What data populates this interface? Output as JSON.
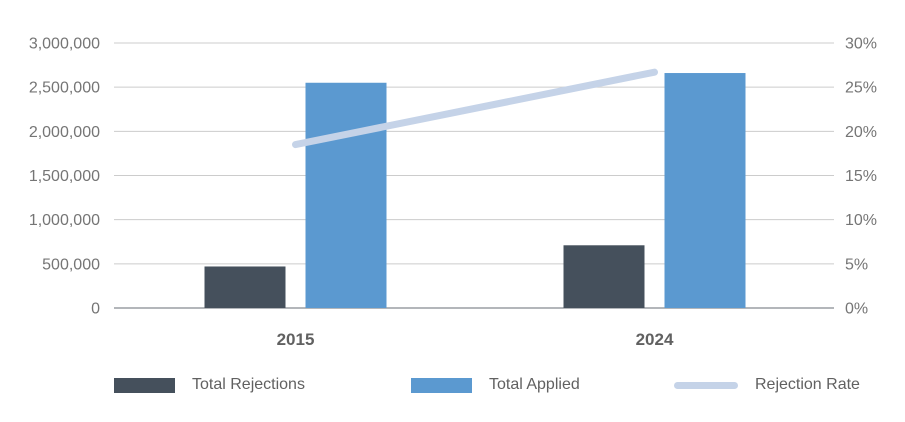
{
  "chart_data": {
    "type": "bar",
    "subtype": "combo-bar-line-dual-axis",
    "categories": [
      "2015",
      "2024"
    ],
    "series": [
      {
        "name": "Total Rejections",
        "type": "bar",
        "axis": "left",
        "color": "#45505c",
        "values": [
          470000,
          710000
        ]
      },
      {
        "name": "Total Applied",
        "type": "bar",
        "axis": "left",
        "color": "#5b99d0",
        "values": [
          2550000,
          2660000
        ]
      },
      {
        "name": "Rejection Rate",
        "type": "line",
        "axis": "right",
        "color": "#c5d3e8",
        "values": [
          18.5,
          26.7
        ]
      }
    ],
    "left_axis": {
      "min": 0,
      "max": 3000000,
      "tick_labels": [
        "3,000,000",
        "2,500,000",
        "2,000,000",
        "1,500,000",
        "1,000,000",
        "500,000",
        "0"
      ],
      "tick_values": [
        3000000,
        2500000,
        2000000,
        1500000,
        1000000,
        500000,
        0
      ]
    },
    "right_axis": {
      "min": 0,
      "max": 30,
      "tick_labels": [
        "30%",
        "25%",
        "20%",
        "15%",
        "10%",
        "5%",
        "0%"
      ],
      "tick_values": [
        30,
        25,
        20,
        15,
        10,
        5,
        0
      ]
    },
    "grid": true,
    "legend_position": "bottom",
    "title": ""
  },
  "colors": {
    "background": "#ffffff",
    "gridline": "#cccccc",
    "baseline": "#b3b6ba",
    "axis_label": "#757575",
    "category_label": "#616161",
    "legend_text": "#616161"
  }
}
